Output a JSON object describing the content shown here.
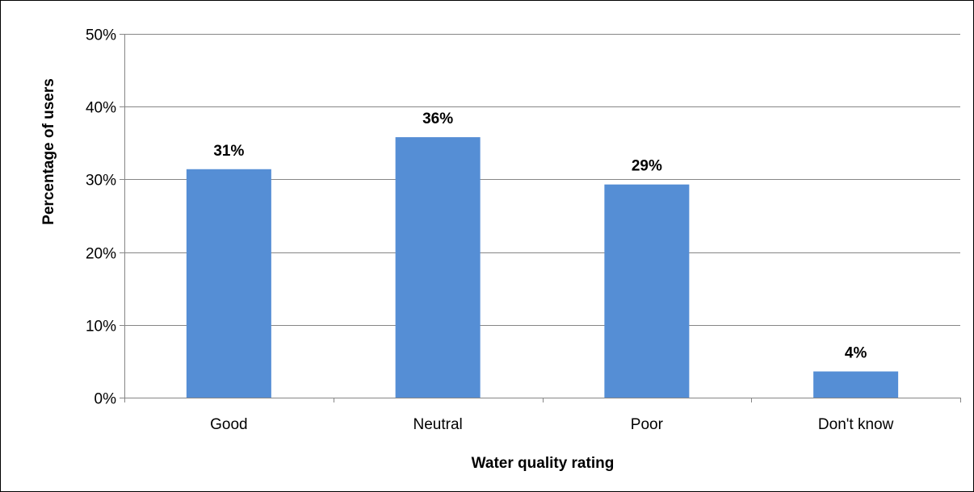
{
  "chart_data": {
    "type": "bar",
    "title": "",
    "xlabel": "Water quality rating",
    "ylabel": "Percentage of users",
    "categories": [
      "Good",
      "Neutral",
      "Poor",
      "Don't know"
    ],
    "values": [
      31.4,
      35.8,
      29.3,
      3.6
    ],
    "data_labels": [
      "31%",
      "36%",
      "29%",
      "4%"
    ],
    "ylim": [
      0,
      50
    ],
    "yticks": [
      0,
      10,
      20,
      30,
      40,
      50
    ],
    "ytick_labels": [
      "0%",
      "10%",
      "20%",
      "30%",
      "40%",
      "50%"
    ],
    "grid": true,
    "legend": "none",
    "colors": {
      "bar": "#558ed5",
      "grid": "#868686",
      "axis": "#868686"
    }
  }
}
